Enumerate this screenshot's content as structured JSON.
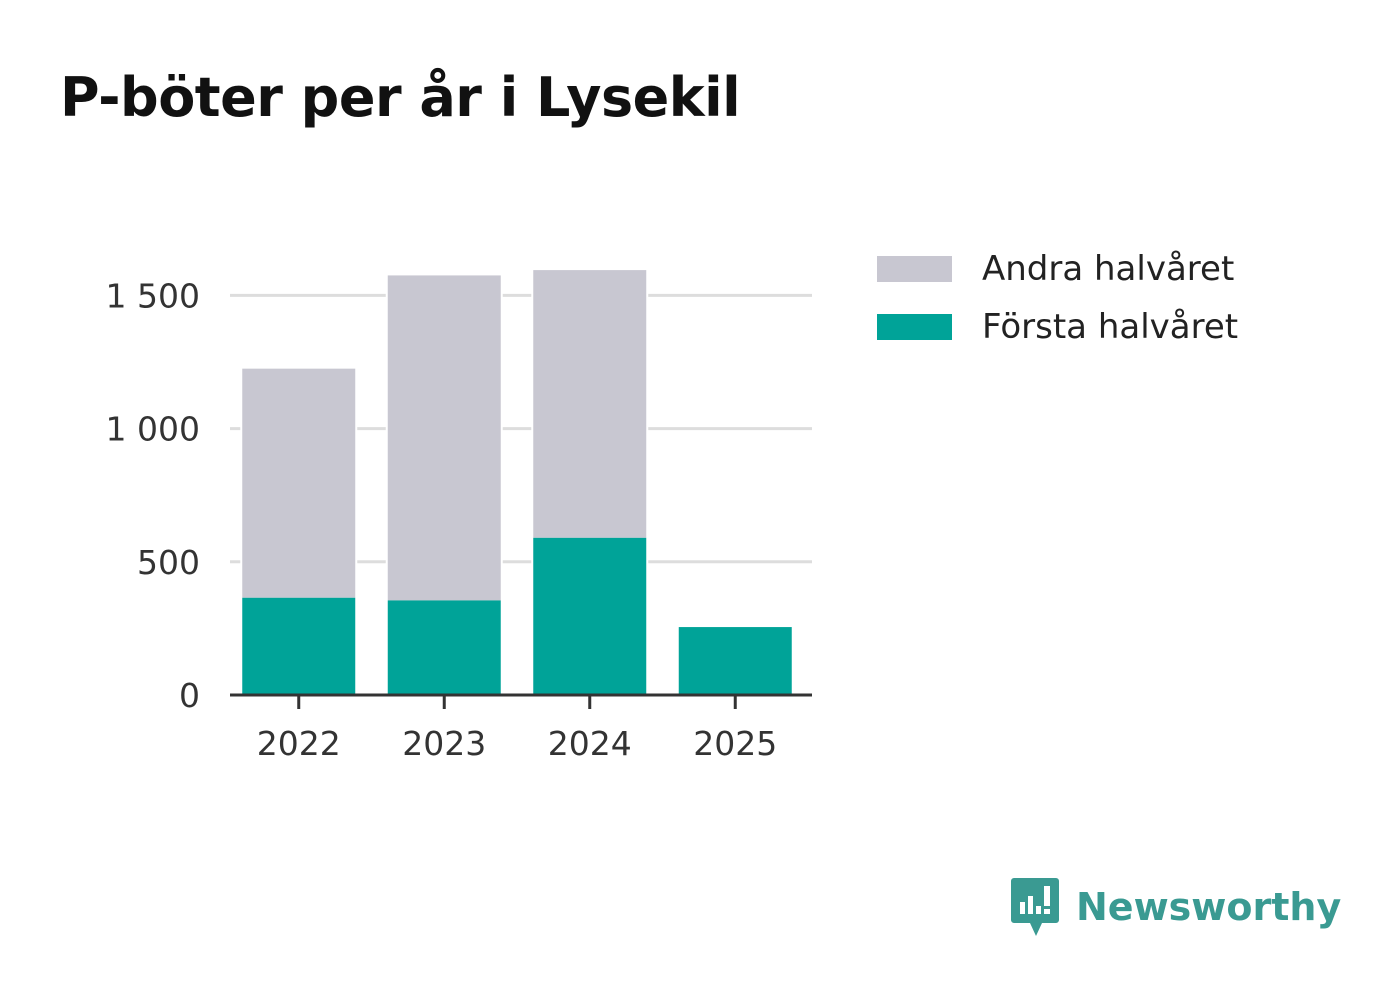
{
  "colors": {
    "andra": "#c8c7d1",
    "forsta": "#00a398",
    "grid": "#dddddd",
    "axis": "#333333",
    "brand": "#3a9a92"
  },
  "legend": [
    {
      "label": "Andra halvåret",
      "color": "#c8c7d1"
    },
    {
      "label": "Första halvåret",
      "color": "#00a398"
    }
  ],
  "brand": {
    "name": "Newsworthy",
    "icon": "newsworthy-logo-icon"
  },
  "chart_data": {
    "type": "bar",
    "stacked": true,
    "title": "P-böter per år i Lysekil",
    "categories": [
      "2022",
      "2023",
      "2024",
      "2025"
    ],
    "series": [
      {
        "name": "Första halvåret",
        "values": [
          365,
          355,
          590,
          255
        ]
      },
      {
        "name": "Andra halvåret",
        "values": [
          860,
          1220,
          1005,
          0
        ]
      }
    ],
    "yticks": [
      0,
      500,
      1000,
      1500
    ],
    "ytick_labels": [
      "0",
      "500",
      "1 000",
      "1 500"
    ],
    "ylim": [
      0,
      1600
    ],
    "grid": true,
    "legend_position": "right"
  }
}
